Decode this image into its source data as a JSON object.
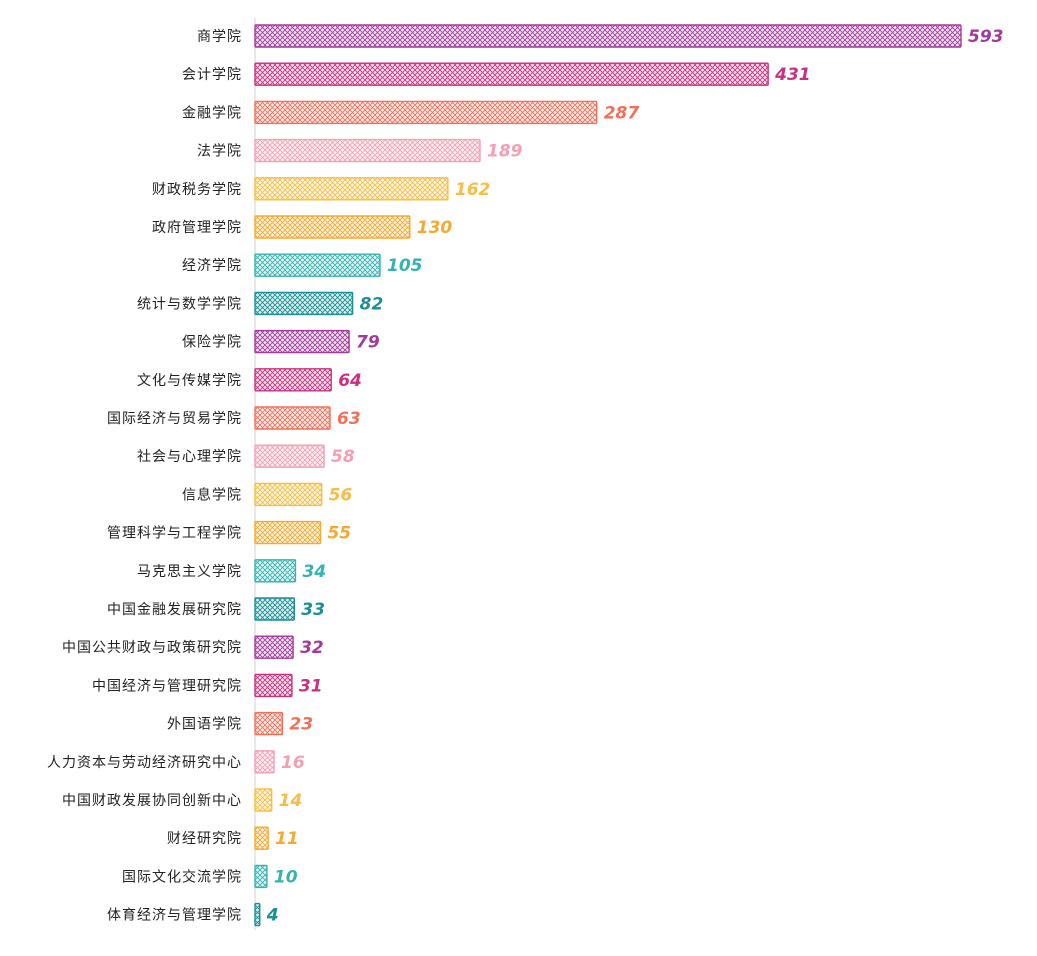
{
  "chart_data": {
    "type": "bar",
    "orientation": "horizontal",
    "style": "hand-drawn with cross-hatch fill",
    "categories": [
      "商学院",
      "会计学院",
      "金融学院",
      "法学院",
      "财政税务学院",
      "政府管理学院",
      "经济学院",
      "统计与数学学院",
      "保险学院",
      "文化与传媒学院",
      "国际经济与贸易学院",
      "社会与心理学院",
      "信息学院",
      "管理科学与工程学院",
      "马克思主义学院",
      "中国金融发展研究院",
      "中国公共财政与政策研究院",
      "中国经济与管理研究院",
      "外国语学院",
      "人力资本与劳动经济研究中心",
      "中国财政发展协同创新中心",
      "财经研究院",
      "国际文化交流学院",
      "体育经济与管理学院"
    ],
    "values": [
      593,
      431,
      287,
      189,
      162,
      130,
      105,
      82,
      79,
      64,
      63,
      58,
      56,
      55,
      34,
      33,
      32,
      31,
      23,
      16,
      14,
      11,
      10,
      4
    ],
    "colors": [
      "#a23a9c",
      "#c9307f",
      "#f0715a",
      "#f4a0b3",
      "#f8bd45",
      "#f5a92e",
      "#36b3b0",
      "#1a8f95"
    ],
    "xlim": [
      0,
      600
    ],
    "grid": false,
    "legend": "none",
    "title": "",
    "xlabel": "",
    "ylabel": ""
  }
}
